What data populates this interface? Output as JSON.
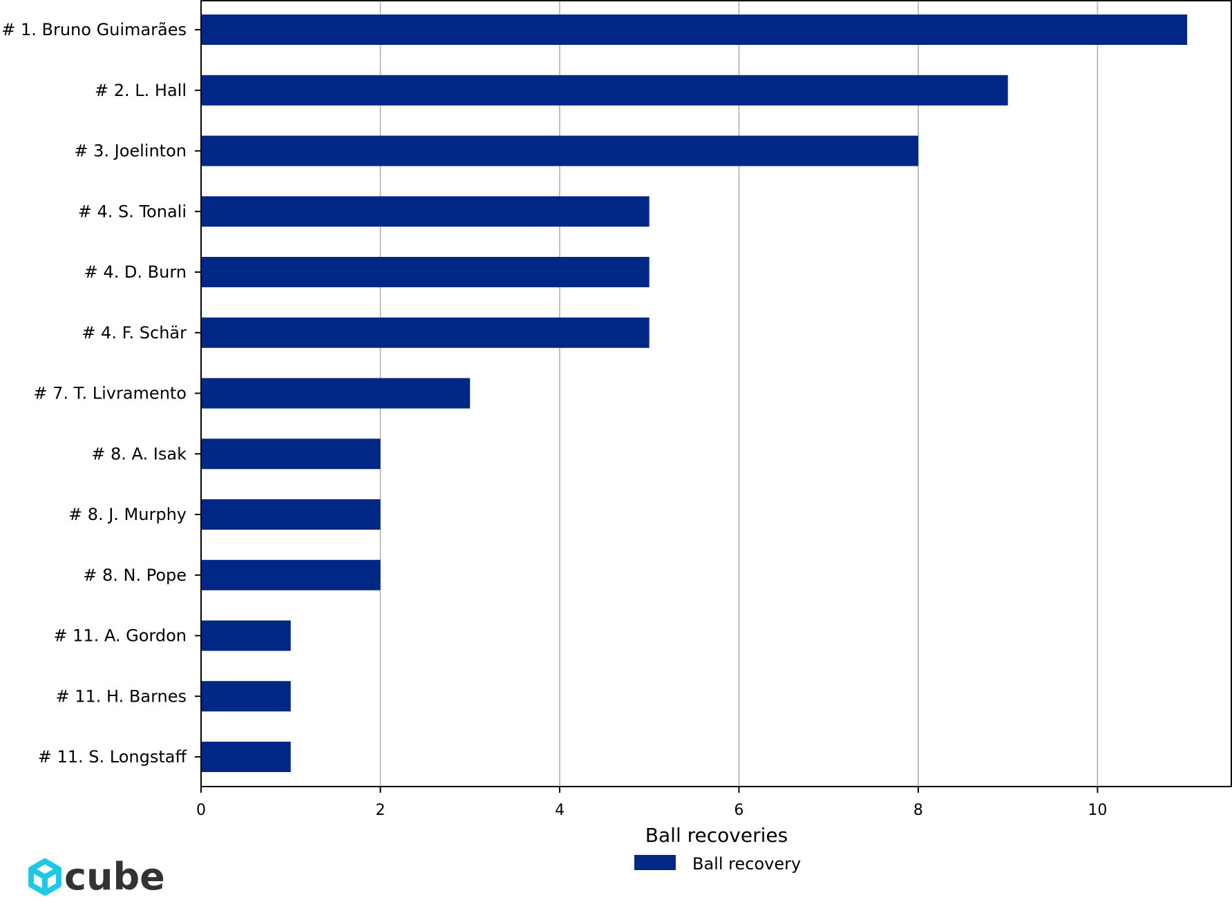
{
  "chart_data": {
    "type": "bar",
    "orientation": "horizontal",
    "categories": [
      "# 1.  Bruno Guimarães",
      "# 2.  L. Hall",
      "# 3.  Joelinton",
      "# 4.  S. Tonali",
      "# 4.  D. Burn",
      "# 4.  F. Schär",
      "# 7.  T. Livramento",
      "# 8.  A. Isak",
      "# 8.  J. Murphy",
      "# 8.  N. Pope",
      "# 11.  A. Gordon",
      "# 11.  H. Barnes",
      "# 11.  S. Longstaff"
    ],
    "series": [
      {
        "name": "Ball recovery",
        "values": [
          11,
          9,
          8,
          5,
          5,
          5,
          3,
          2,
          2,
          2,
          1,
          1,
          1
        ],
        "color": "#002686"
      }
    ],
    "xlabel": "Ball recoveries",
    "ylabel": "",
    "xlim": [
      0,
      11.5
    ],
    "xticks": [
      0,
      2,
      4,
      6,
      8,
      10
    ],
    "grid": "vertical",
    "legend_position": "bottom-center"
  },
  "logo": {
    "text": "cube",
    "icon": "cube-logo-icon",
    "icon_color": "#1ec8e6",
    "text_color": "#333333"
  }
}
